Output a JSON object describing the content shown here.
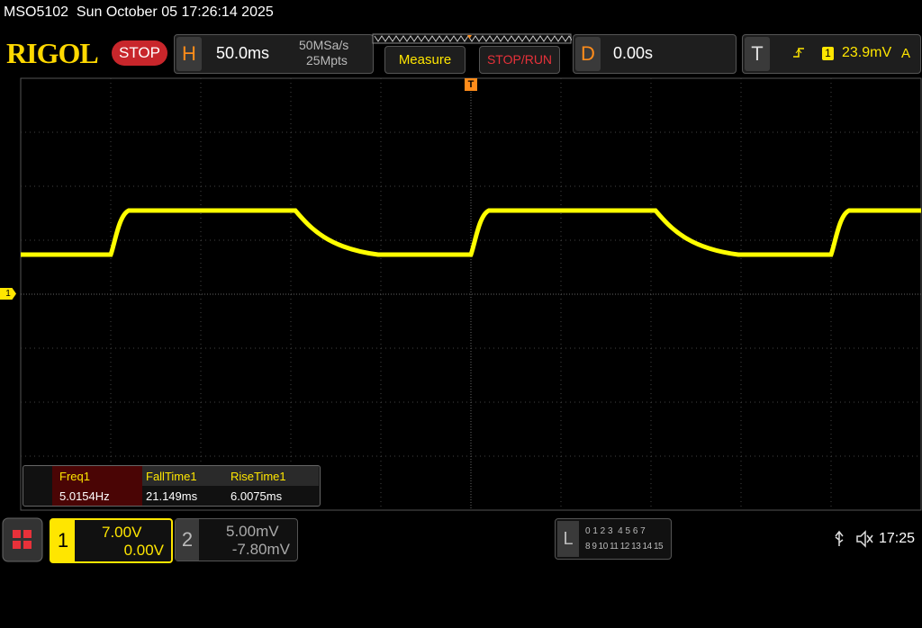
{
  "header": {
    "status_line": "MSO5102  Sun October 05 17:26:14 2025"
  },
  "toolbar": {
    "logo": "RIGOL",
    "run_state": "STOP",
    "horizontal": {
      "label": "H",
      "timebase": "50.0ms",
      "sample_rate": "50MSa/s",
      "memory_depth": "25Mpts"
    },
    "buttons": [
      "Measure",
      "STOP/RUN"
    ],
    "delay": {
      "label": "D",
      "value": "0.00s"
    },
    "trigger": {
      "label": "T",
      "channel": "1",
      "level": "23.9mV",
      "mode": "A"
    }
  },
  "screen": {
    "trigger_marker": "T",
    "channel_marker": "1"
  },
  "measurements": {
    "headers": [
      "Freq1",
      "FallTime1",
      "RiseTime1"
    ],
    "values": [
      "5.0154Hz",
      "21.149ms",
      "6.0075ms"
    ]
  },
  "footer": {
    "channel1": {
      "label": "1",
      "scale": "7.00V",
      "offset": "0.00V"
    },
    "channel2": {
      "label": "2",
      "scale": "5.00mV",
      "offset": "-7.80mV"
    },
    "logic": {
      "label": "L",
      "row1": "0 1 2 3  4 5 6 7",
      "row2": "8 9 10 11 12 13 14 15"
    },
    "clock": "17:25"
  }
}
